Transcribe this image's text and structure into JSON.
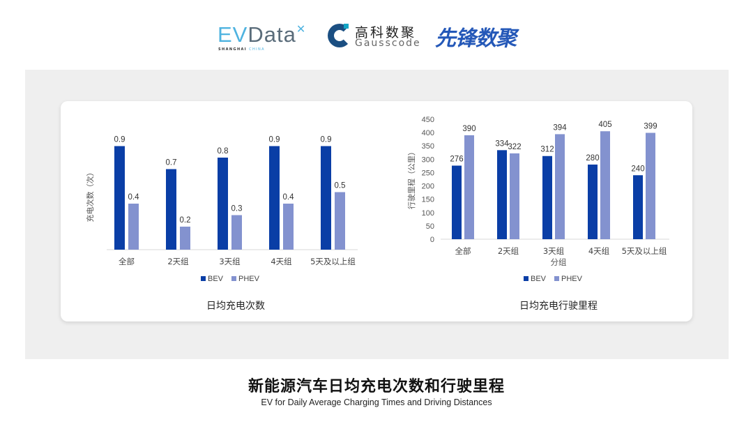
{
  "logos": {
    "evdata": {
      "text_ev": "EV",
      "text_data": "Data",
      "sub_a": "SHANGHAI",
      "sub_b": "CHINA"
    },
    "gausscode": {
      "cn": "高科数聚",
      "en": "Gausscode"
    },
    "xianfeng": {
      "text": "先锋数聚"
    }
  },
  "colors": {
    "bev": "#0a3ea6",
    "phev": "#8392cf",
    "panel": "#efefef"
  },
  "title": "新能源汽车日均充电次数和行驶里程",
  "subtitle": "EV for Daily Average Charging Times and Driving Distances",
  "chart_data": [
    {
      "type": "bar",
      "title": "日均充电次数",
      "ylabel": "充电次数（次）",
      "xlabel": "",
      "categories": [
        "全部",
        "2天组",
        "3天组",
        "4天组",
        "5天及以上组"
      ],
      "series": [
        {
          "name": "BEV",
          "values": [
            0.9,
            0.7,
            0.8,
            0.9,
            0.9
          ]
        },
        {
          "name": "PHEV",
          "values": [
            0.4,
            0.2,
            0.3,
            0.4,
            0.5
          ]
        }
      ],
      "ylim": [
        0,
        1.0
      ],
      "y_ticks_shown": false,
      "grid": false,
      "legend": "bottom"
    },
    {
      "type": "bar",
      "title": "日均充电行驶里程",
      "ylabel": "行驶里程（公里）",
      "xlabel": "分组",
      "categories": [
        "全部",
        "2天组",
        "3天组",
        "4天组",
        "5天及以上组"
      ],
      "series": [
        {
          "name": "BEV",
          "values": [
            276,
            334,
            312,
            280,
            240
          ]
        },
        {
          "name": "PHEV",
          "values": [
            390,
            322,
            394,
            405,
            399
          ]
        }
      ],
      "ylim": [
        0,
        450
      ],
      "yticks": [
        0,
        50,
        100,
        150,
        200,
        250,
        300,
        350,
        400,
        450
      ],
      "grid": false,
      "legend": "bottom"
    }
  ]
}
